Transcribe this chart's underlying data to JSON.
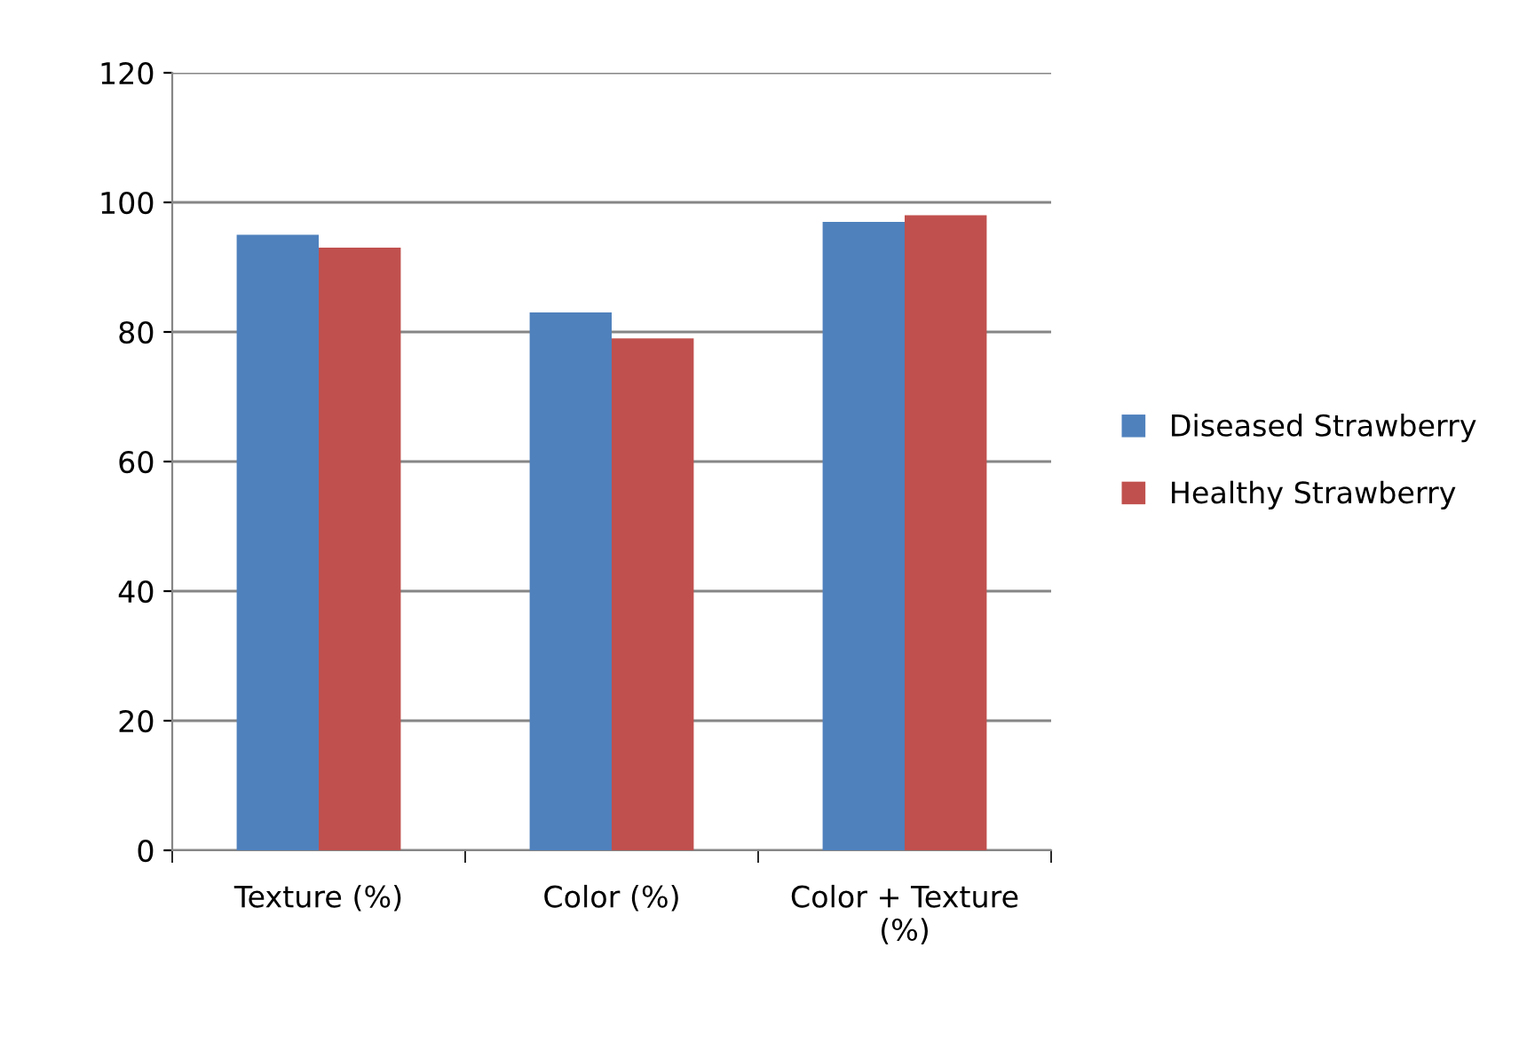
{
  "chart_data": {
    "type": "bar",
    "categories": [
      "Texture (%)",
      "Color (%)",
      "Color + Texture\n(%)"
    ],
    "series": [
      {
        "name": "Diseased Strawberry",
        "color": "#4f81bd",
        "values": [
          95,
          83,
          97
        ]
      },
      {
        "name": "Healthy Strawberry",
        "color": "#c0504d",
        "values": [
          93,
          79,
          98
        ]
      }
    ],
    "ylim": [
      0,
      120
    ],
    "yticks": [
      0,
      20,
      40,
      60,
      80,
      100,
      120
    ],
    "grid": "y",
    "legend": "right"
  }
}
